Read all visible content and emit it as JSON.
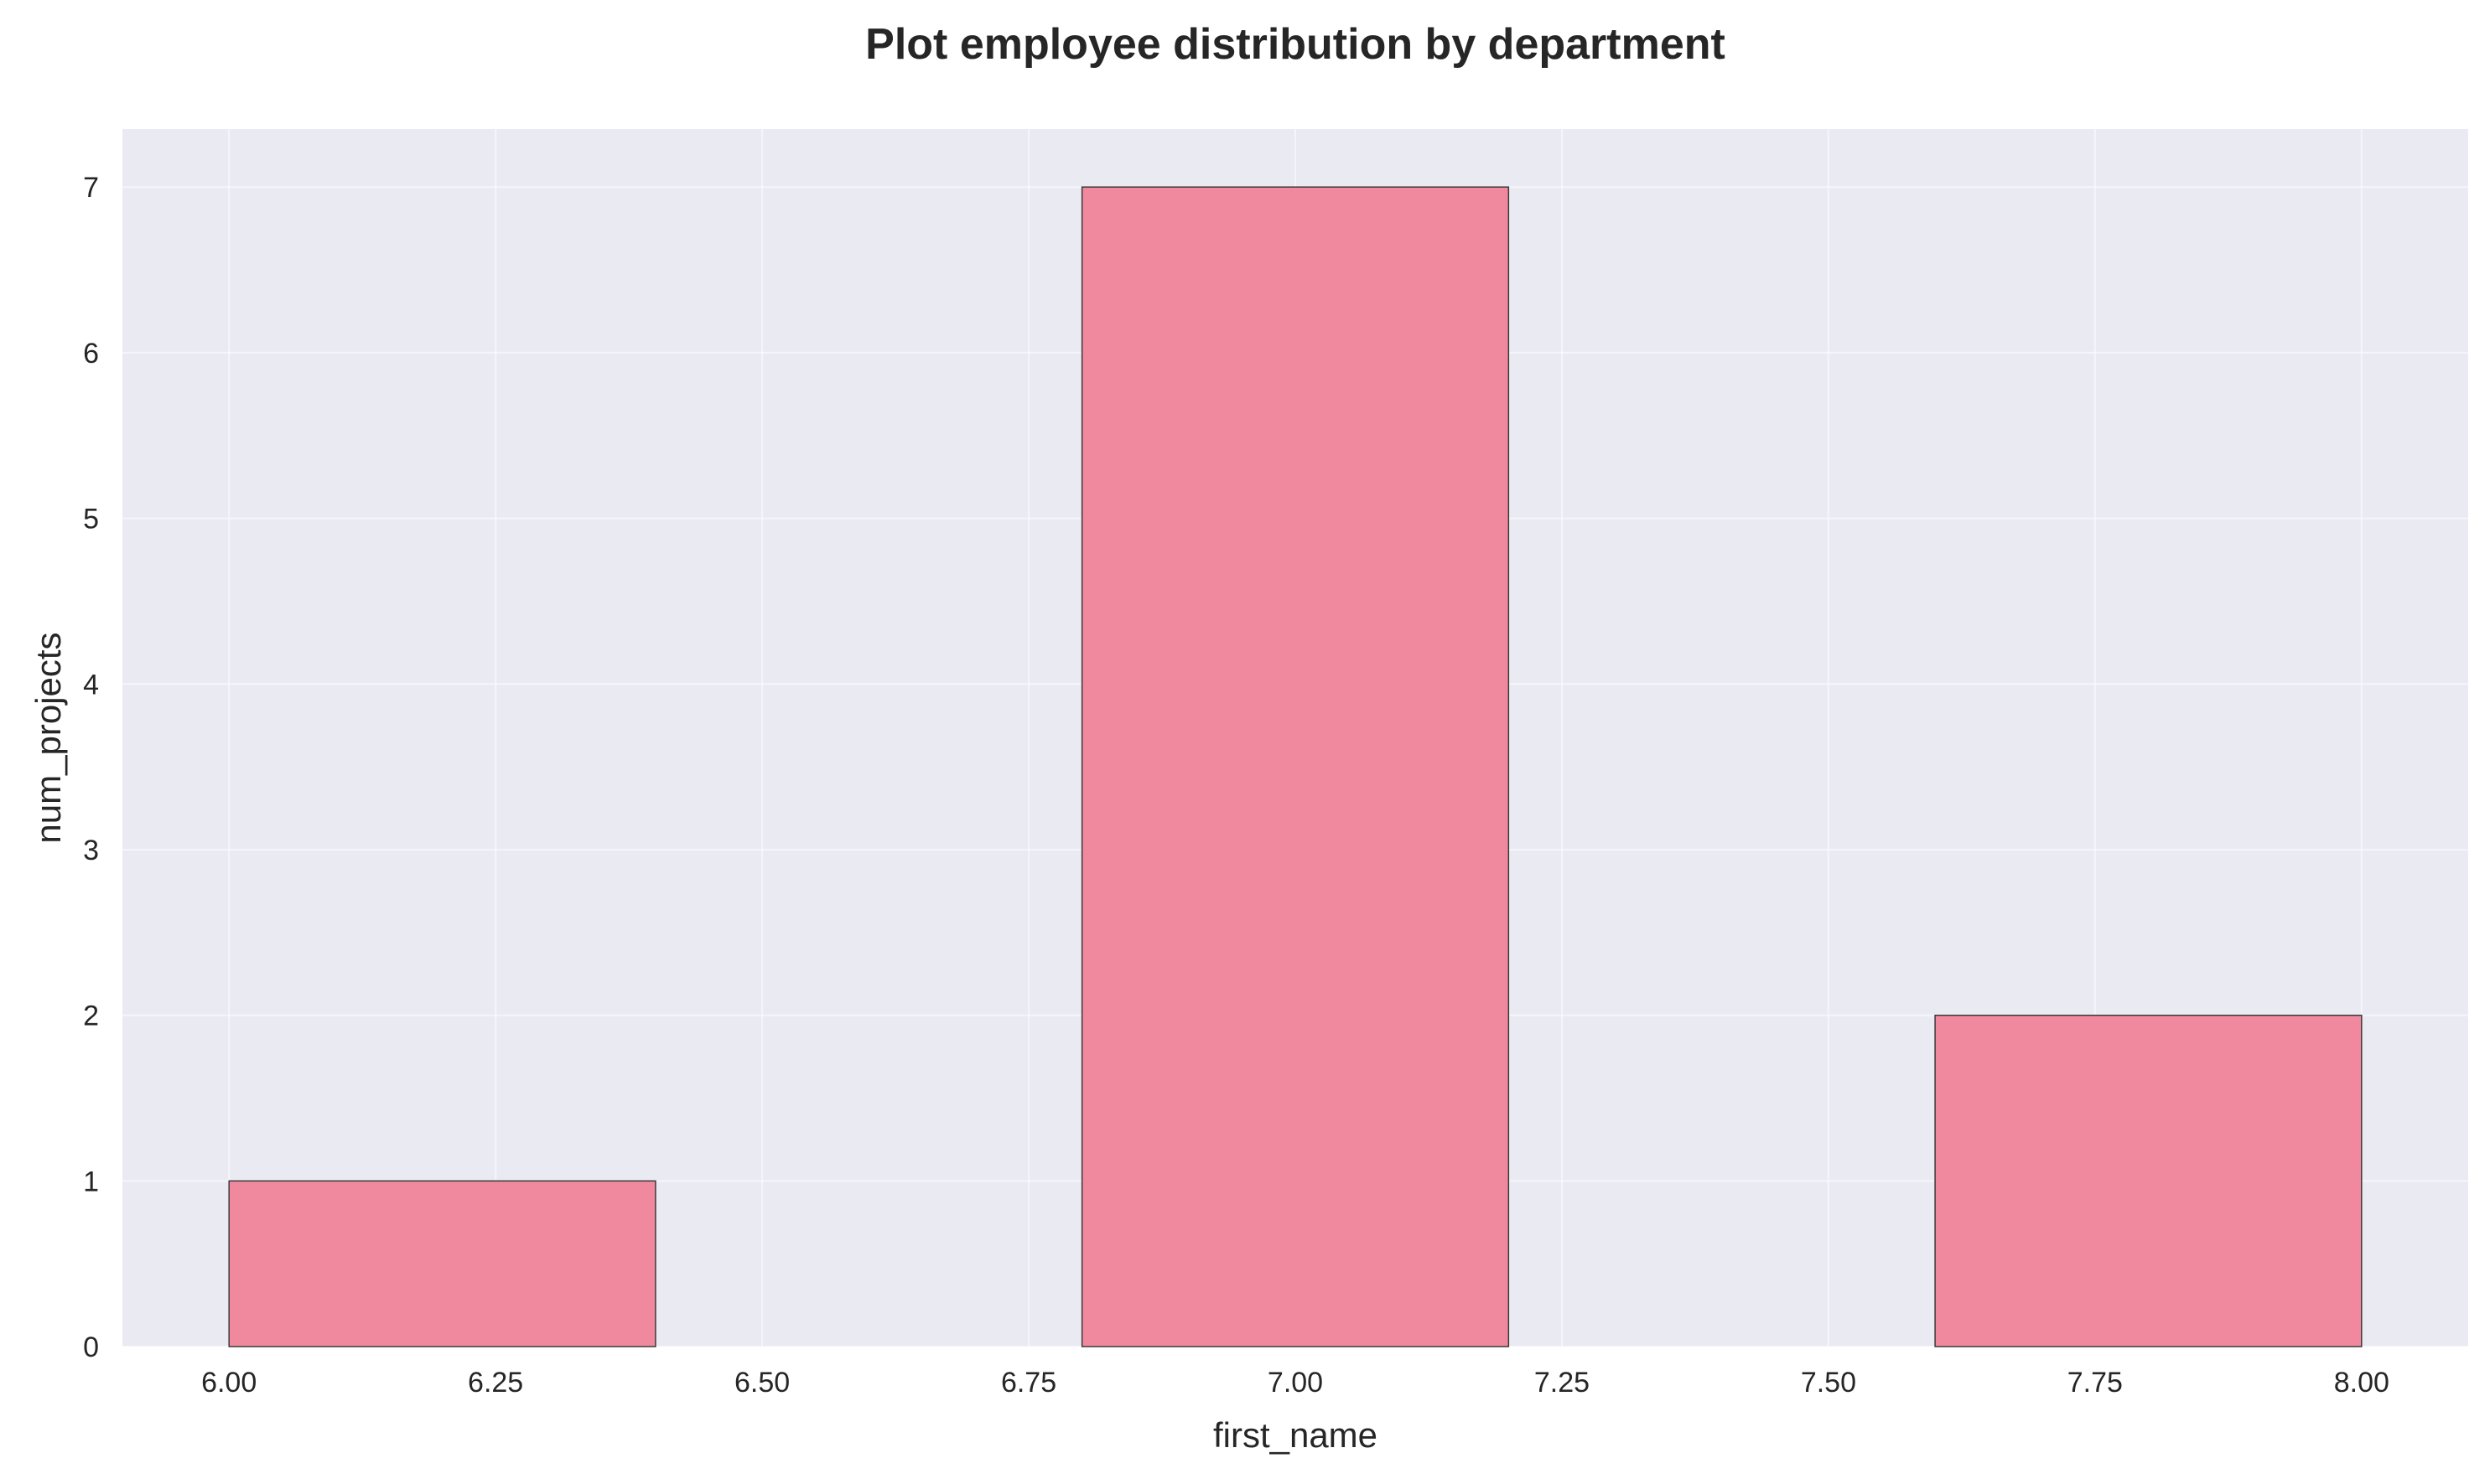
{
  "chart_data": {
    "type": "bar",
    "title": "Plot employee distribution by department",
    "xlabel": "first_name",
    "ylabel": "num_projects",
    "xlim": [
      5.9,
      8.1
    ],
    "ylim": [
      0,
      7.35
    ],
    "x_ticks": [
      "6.00",
      "6.25",
      "6.50",
      "6.75",
      "7.00",
      "7.25",
      "7.50",
      "7.75",
      "8.00"
    ],
    "y_ticks": [
      "0",
      "1",
      "2",
      "3",
      "4",
      "5",
      "6",
      "7"
    ],
    "bars": [
      {
        "x_start": 6.0,
        "x_end": 6.4,
        "value": 1
      },
      {
        "x_start": 6.4,
        "x_end": 6.8,
        "value": 0
      },
      {
        "x_start": 6.8,
        "x_end": 7.2,
        "value": 7
      },
      {
        "x_start": 7.2,
        "x_end": 7.6,
        "value": 0
      },
      {
        "x_start": 7.6,
        "x_end": 8.0,
        "value": 2
      }
    ],
    "grid": true,
    "colors": {
      "bar_fill": "#f0899e",
      "bar_edge": "#3a3a3a",
      "plot_background": "#eaeaf2",
      "grid": "#ffffff"
    }
  }
}
